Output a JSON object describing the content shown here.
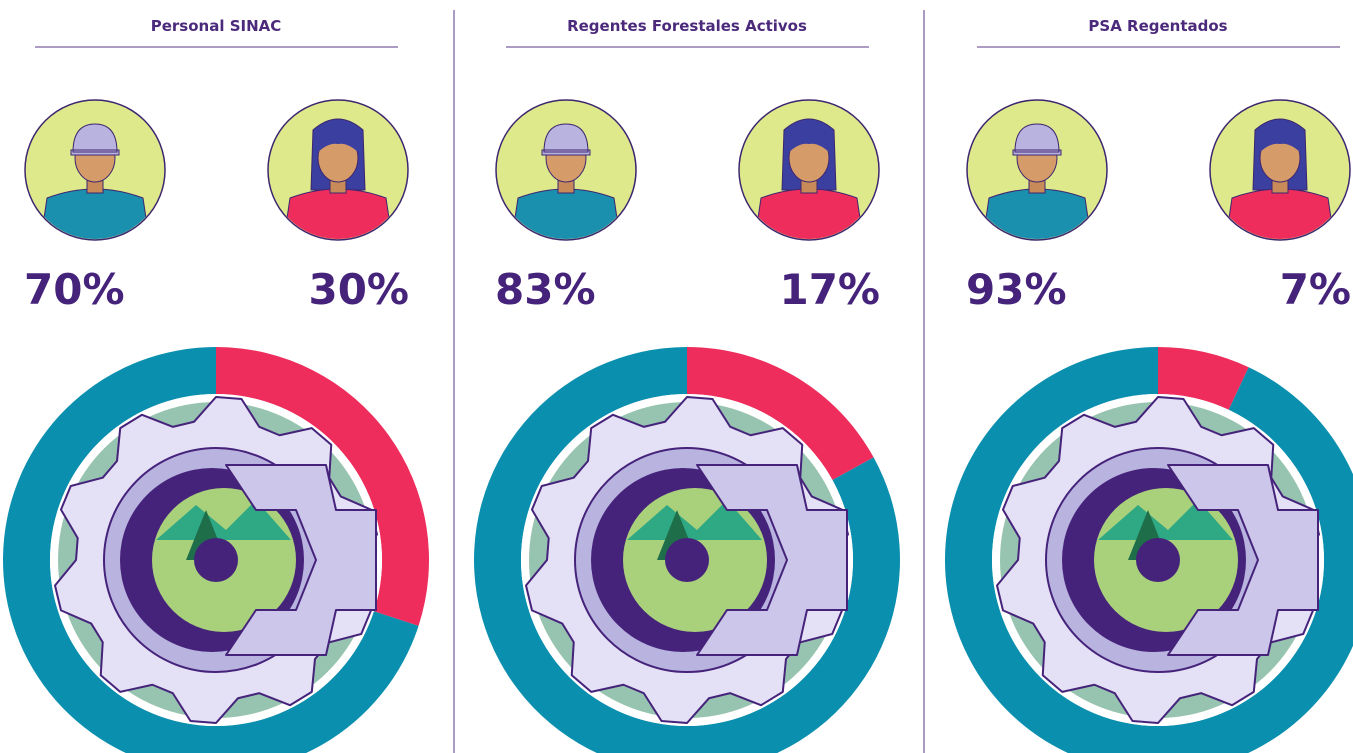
{
  "chart_data": [
    {
      "type": "donut",
      "title": "Personal SINAC",
      "values": [
        70,
        30
      ],
      "value_labels": [
        "70%",
        "30%"
      ],
      "colors": [
        "#0a8fae",
        "#ee2d5d"
      ]
    },
    {
      "type": "donut",
      "title": "Regentes Forestales Activos",
      "values": [
        83,
        17
      ],
      "value_labels": [
        "83%",
        "17%"
      ],
      "colors": [
        "#0a8fae",
        "#ee2d5d"
      ]
    },
    {
      "type": "donut",
      "title": "PSA Regentados",
      "values": [
        93,
        7
      ],
      "value_labels": [
        "93%",
        "7%"
      ],
      "colors": [
        "#0a8fae",
        "#ee2d5d"
      ]
    }
  ]
}
